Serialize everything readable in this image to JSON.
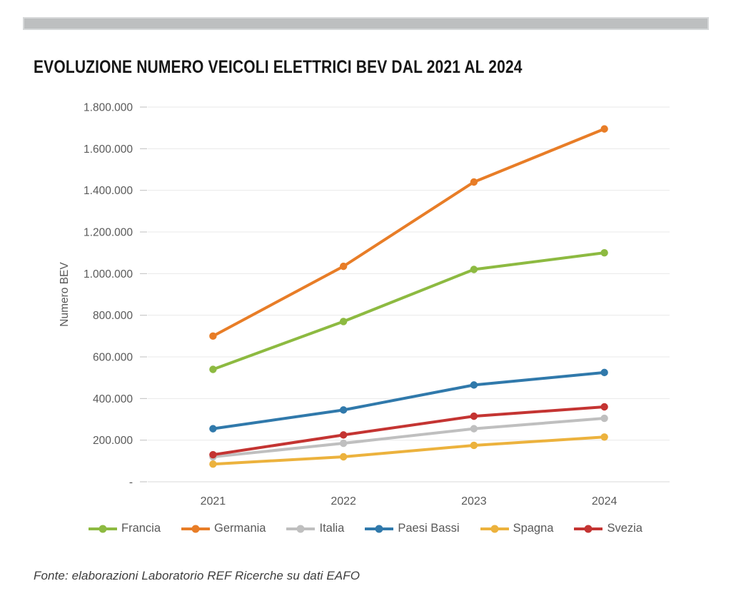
{
  "page": {
    "title": "EVOLUZIONE NUMERO VEICOLI ELETTRICI BEV DAL 2021 AL 2024",
    "source_note": "Fonte: elaborazioni Laboratorio REF Ricerche su dati EAFO"
  },
  "chart_data": {
    "type": "line",
    "title": "EVOLUZIONE NUMERO VEICOLI ELETTRICI BEV DAL 2021 AL 2024",
    "x": [
      "2021",
      "2022",
      "2023",
      "2024"
    ],
    "xlabel": "",
    "ylabel": "Numero BEV",
    "ylim": [
      0,
      1800000
    ],
    "y_tick_interval": 200000,
    "y_tick_labels": [
      "-",
      "200.000",
      "400.000",
      "600.000",
      "800.000",
      "1.000.000",
      "1.200.000",
      "1.400.000",
      "1.600.000",
      "1.800.000"
    ],
    "grid": "horizontal",
    "legend_position": "bottom",
    "marker": "circle",
    "series": [
      {
        "name": "Francia",
        "color": "#8dba41",
        "values": [
          540000,
          770000,
          1020000,
          1100000
        ]
      },
      {
        "name": "Germania",
        "color": "#e87d27",
        "values": [
          700000,
          1035000,
          1440000,
          1695000
        ]
      },
      {
        "name": "Italia",
        "color": "#bfbfbf",
        "values": [
          120000,
          185000,
          255000,
          305000
        ]
      },
      {
        "name": "Paesi Bassi",
        "color": "#3079ab",
        "values": [
          255000,
          345000,
          465000,
          525000
        ]
      },
      {
        "name": "Spagna",
        "color": "#ecb23d",
        "values": [
          85000,
          120000,
          175000,
          215000
        ]
      },
      {
        "name": "Svezia",
        "color": "#c43432",
        "values": [
          130000,
          225000,
          315000,
          360000
        ]
      }
    ]
  },
  "colors": {
    "top_bar": "#bdbfc0",
    "axis_text": "#595959",
    "gridline": "#e9e9e9",
    "axis_line": "#d9d9d9",
    "tick_mark": "#bfbfbf",
    "title_text": "#161616",
    "source_text": "#3d3d3d"
  }
}
